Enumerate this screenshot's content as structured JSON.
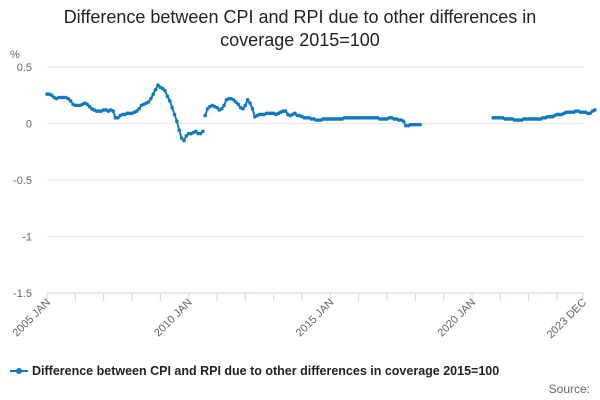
{
  "title_line1": "Difference between CPI and RPI due to other differences in",
  "title_line2": "coverage 2015=100",
  "source_label": "Source:",
  "colors": {
    "series": "#0f7ac1",
    "grid": "#e6e6e6",
    "axis": "#ccd6eb",
    "text": "#666666"
  },
  "chart_data": {
    "type": "line",
    "ylabel": "%",
    "ylim": [
      -1.5,
      0.5
    ],
    "yticks": [
      0.5,
      0,
      -0.5,
      -1,
      -1.5
    ],
    "ytick_labels": [
      "0.5",
      "0",
      "-0.5",
      "-1",
      "-1.5"
    ],
    "x_start": "2005 JAN",
    "x_end": "2023 DEC",
    "xtick_labels": [
      "2005 JAN",
      "2010 JAN",
      "2015 JAN",
      "2020 JAN",
      "2023 DEC"
    ],
    "grid": true,
    "legend_position": "bottom",
    "series": [
      {
        "name": "Difference between CPI and RPI due to other differences in coverage 2015=100",
        "segments": [
          {
            "start": "2005-01",
            "values": [
              0.26,
              0.26,
              0.25,
              0.23,
              0.22,
              0.23,
              0.23,
              0.23,
              0.23,
              0.22,
              0.2,
              0.17,
              0.16,
              0.16,
              0.16,
              0.17,
              0.18,
              0.17,
              0.15,
              0.13,
              0.12,
              0.11,
              0.11,
              0.11,
              0.12,
              0.12,
              0.11,
              0.12,
              0.11,
              0.05,
              0.05,
              0.07,
              0.08,
              0.08,
              0.09,
              0.09,
              0.09,
              0.1,
              0.11,
              0.13,
              0.16,
              0.17,
              0.18,
              0.19,
              0.22,
              0.26,
              0.3,
              0.34,
              0.32,
              0.31,
              0.29,
              0.24,
              0.2,
              0.14,
              0.08,
              0.02,
              -0.06,
              -0.13,
              -0.15,
              -0.11,
              -0.09,
              -0.09,
              -0.08,
              -0.07,
              -0.09,
              -0.09,
              -0.07
            ]
          },
          {
            "start": "2010-08",
            "values": [
              0.07,
              0.13,
              0.15,
              0.16,
              0.15,
              0.14,
              0.12,
              0.13,
              0.16,
              0.21,
              0.22,
              0.22,
              0.21,
              0.19,
              0.17,
              0.14,
              0.13,
              0.16,
              0.21,
              0.18,
              0.13,
              0.06,
              0.07,
              0.08,
              0.08,
              0.08,
              0.09,
              0.09,
              0.09,
              0.09,
              0.08,
              0.09,
              0.1,
              0.11,
              0.11,
              0.08,
              0.07,
              0.08,
              0.09,
              0.07,
              0.07,
              0.06,
              0.05,
              0.05,
              0.05,
              0.04,
              0.04,
              0.03,
              0.03,
              0.03,
              0.04,
              0.04,
              0.04,
              0.04,
              0.04,
              0.04,
              0.04,
              0.04,
              0.04,
              0.05,
              0.05,
              0.05,
              0.05,
              0.05,
              0.05,
              0.05,
              0.05,
              0.05,
              0.05,
              0.05,
              0.05,
              0.05,
              0.05,
              0.05,
              0.04,
              0.04,
              0.04,
              0.04,
              0.05,
              0.05,
              0.04,
              0.04,
              0.03,
              0.03,
              0.02,
              -0.02,
              -0.02,
              -0.01,
              -0.01,
              -0.01,
              -0.01,
              -0.01
            ]
          },
          {
            "start": "2020-10",
            "values": [
              0.05,
              0.05,
              0.05,
              0.05,
              0.05,
              0.04,
              0.04,
              0.04,
              0.04,
              0.03,
              0.03,
              0.03,
              0.03,
              0.04,
              0.04,
              0.04,
              0.04,
              0.04,
              0.04,
              0.04,
              0.04,
              0.05,
              0.05,
              0.06,
              0.06,
              0.06,
              0.07,
              0.08,
              0.08,
              0.08,
              0.09,
              0.1,
              0.1,
              0.1,
              0.1,
              0.11,
              0.11,
              0.1,
              0.1,
              0.1,
              0.09,
              0.09,
              0.11,
              0.12
            ]
          }
        ]
      }
    ]
  }
}
